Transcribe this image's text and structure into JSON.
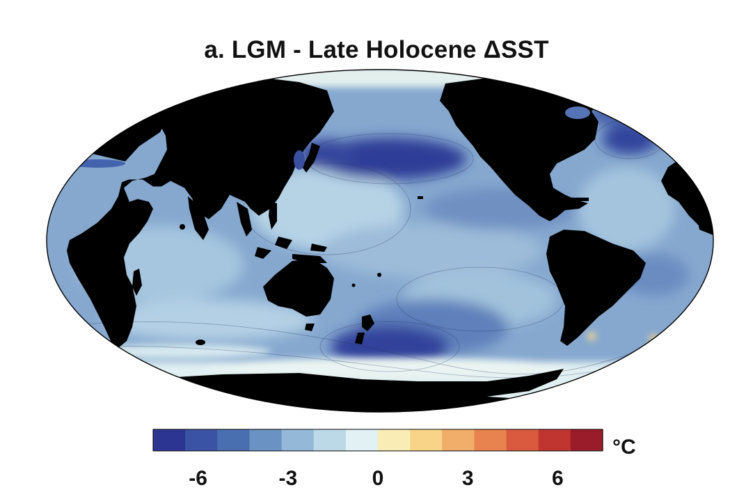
{
  "figure": {
    "title": "a. LGM - Late Holocene  ΔSST"
  },
  "colorbar": {
    "unit": "°C",
    "ticks": [
      "-6",
      "-3",
      "0",
      "3",
      "6"
    ],
    "tick_values": [
      -6,
      -3,
      0,
      3,
      6
    ],
    "range": [
      -7.5,
      7.5
    ],
    "colors": [
      "#2c3592",
      "#3b53a4",
      "#4a6fb0",
      "#6a92c3",
      "#94b9d8",
      "#bcd9e8",
      "#e2f1f3",
      "#f9edb5",
      "#f7d488",
      "#f1ad6a",
      "#e8834f",
      "#d95a3e",
      "#c03530",
      "#9a1b29"
    ]
  },
  "map": {
    "projection": "Robinson-like, centered on Pacific",
    "land_color": "#000000",
    "palette": {
      "deep_cold": "#2e3c96",
      "cold": "#4d6bb0",
      "mid": "#7fa2cb",
      "light": "#a9c9e0",
      "pale": "#dcecf0",
      "warm": "#f6d78a"
    }
  }
}
